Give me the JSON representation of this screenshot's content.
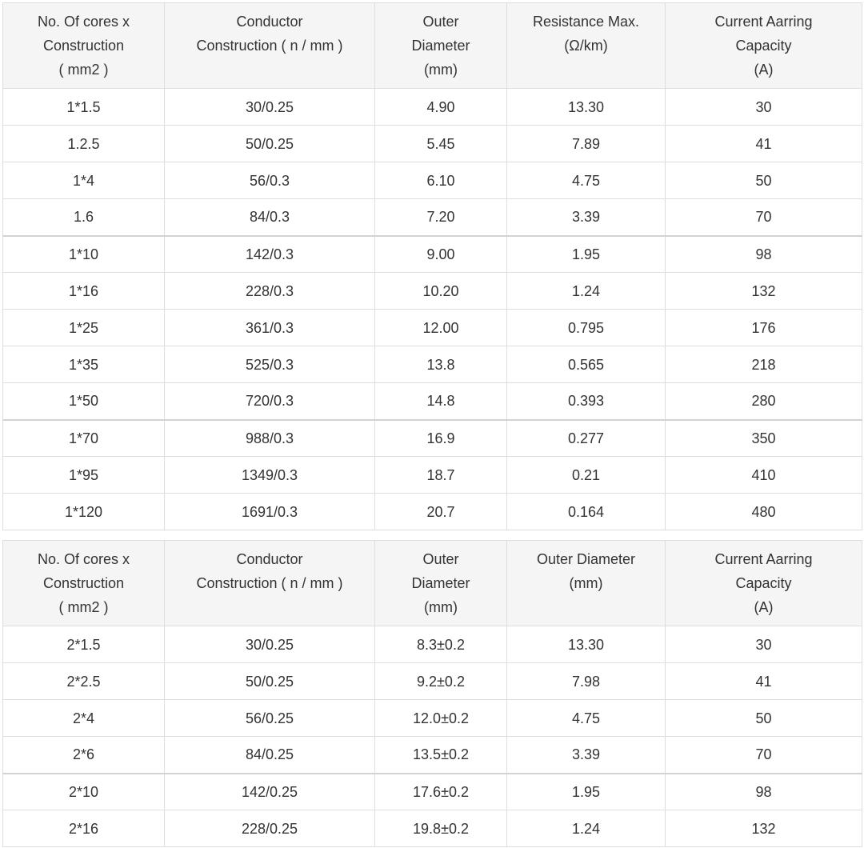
{
  "table1": {
    "headers": [
      [
        "No. Of cores x",
        "Construction",
        "( mm2 )"
      ],
      [
        "Conductor",
        "Construction ( n / mm )"
      ],
      [
        "Outer",
        "Diameter",
        "(mm)"
      ],
      [
        "Resistance Max.",
        "(Ω/km)"
      ],
      [
        "Current Aarring",
        "Capacity",
        "(A)"
      ]
    ],
    "rows": [
      [
        "1*1.5",
        "30/0.25",
        "4.90",
        "13.30",
        "30"
      ],
      [
        "1.2.5",
        "50/0.25",
        "5.45",
        "7.89",
        "41"
      ],
      [
        "1*4",
        "56/0.3",
        "6.10",
        "4.75",
        "50"
      ],
      [
        "1.6",
        "84/0.3",
        "7.20",
        "3.39",
        "70"
      ],
      [
        "1*10",
        "142/0.3",
        "9.00",
        "1.95",
        "98"
      ],
      [
        "1*16",
        "228/0.3",
        "10.20",
        "1.24",
        "132"
      ],
      [
        "1*25",
        "361/0.3",
        "12.00",
        "0.795",
        "176"
      ],
      [
        "1*35",
        "525/0.3",
        "13.8",
        "0.565",
        "218"
      ],
      [
        "1*50",
        "720/0.3",
        "14.8",
        "0.393",
        "280"
      ],
      [
        "1*70",
        "988/0.3",
        "16.9",
        "0.277",
        "350"
      ],
      [
        "1*95",
        "1349/0.3",
        "18.7",
        "0.21",
        "410"
      ],
      [
        "1*120",
        "1691/0.3",
        "20.7",
        "0.164",
        "480"
      ]
    ]
  },
  "table2": {
    "headers": [
      [
        "No. Of cores x",
        "Construction",
        "( mm2 )"
      ],
      [
        "Conductor",
        "Construction ( n / mm )"
      ],
      [
        "Outer",
        "Diameter",
        "(mm)"
      ],
      [
        "Outer Diameter",
        "(mm)"
      ],
      [
        "Current Aarring",
        "Capacity",
        "(A)"
      ]
    ],
    "rows": [
      [
        "2*1.5",
        "30/0.25",
        "8.3±0.2",
        "13.30",
        "30"
      ],
      [
        "2*2.5",
        "50/0.25",
        "9.2±0.2",
        "7.98",
        "41"
      ],
      [
        "2*4",
        "56/0.25",
        "12.0±0.2",
        "4.75",
        "50"
      ],
      [
        "2*6",
        "84/0.25",
        "13.5±0.2",
        "3.39",
        "70"
      ],
      [
        "2*10",
        "142/0.25",
        "17.6±0.2",
        "1.95",
        "98"
      ],
      [
        "2*16",
        "228/0.25",
        "19.8±0.2",
        "1.24",
        "132"
      ]
    ]
  }
}
